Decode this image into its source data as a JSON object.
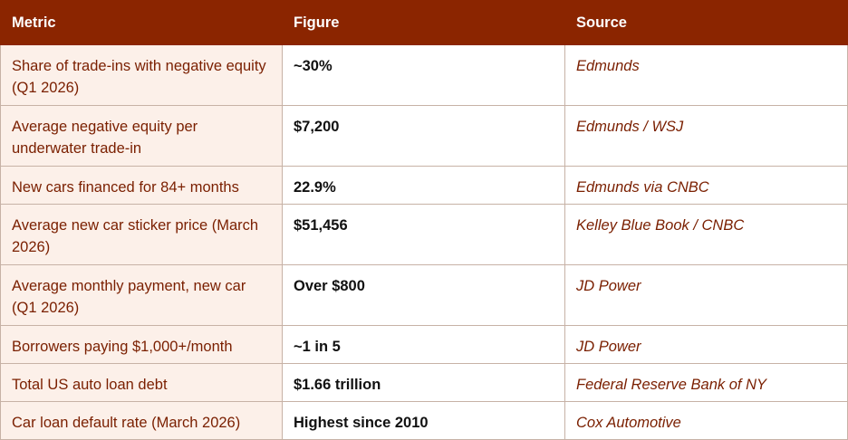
{
  "headers": [
    "Metric",
    "Figure",
    "Source"
  ],
  "rows": [
    {
      "metric": "Share of trade-ins with negative equity (Q1 2026)",
      "figure": "~30%",
      "source": "Edmunds"
    },
    {
      "metric": "Average negative equity per underwater trade-in",
      "figure": "$7,200",
      "source": "Edmunds / WSJ"
    },
    {
      "metric": "New cars financed for 84+ months",
      "figure": "22.9%",
      "source": "Edmunds via CNBC"
    },
    {
      "metric": "Average new car sticker price (March 2026)",
      "figure": "$51,456",
      "source": "Kelley Blue Book / CNBC"
    },
    {
      "metric": "Average monthly payment, new car (Q1 2026)",
      "figure": "Over $800",
      "source": "JD Power"
    },
    {
      "metric": "Borrowers paying $1,000+/month",
      "figure": "~1 in 5",
      "source": "JD Power"
    },
    {
      "metric": "Total US auto loan debt",
      "figure": "$1.66 trillion",
      "source": "Federal Reserve Bank of NY"
    },
    {
      "metric": "Car loan default rate (March 2026)",
      "figure": "Highest since 2010",
      "source": "Cox Automotive"
    }
  ]
}
